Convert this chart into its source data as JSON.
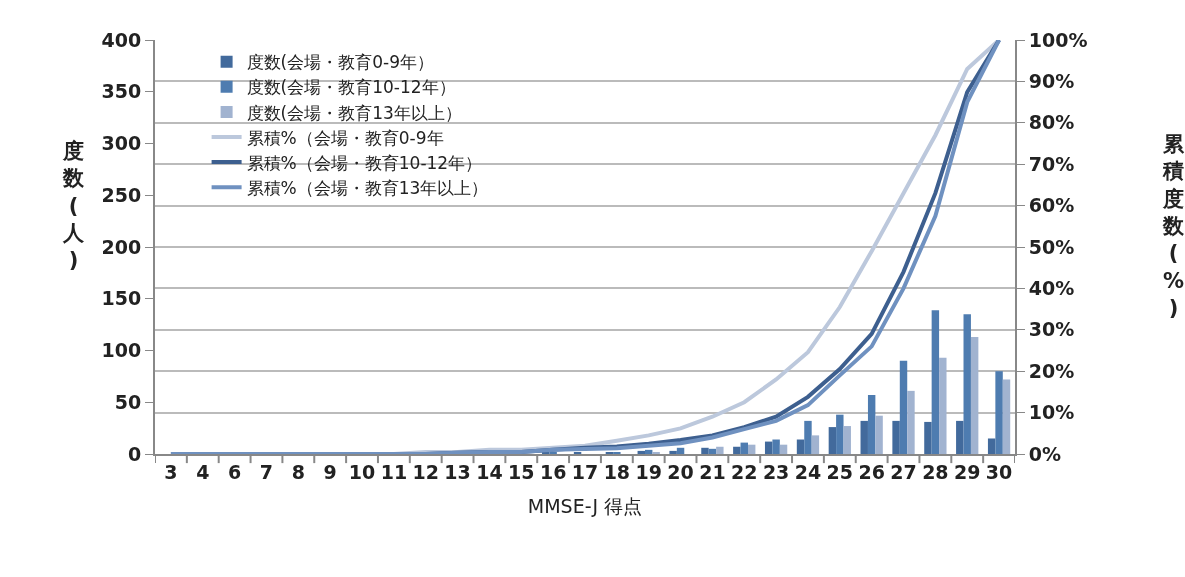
{
  "chart_data": {
    "type": "bar",
    "xlabel": "MMSE-J 得点",
    "ylabel": "度数(人)",
    "y2label": "累積度数(%)",
    "categories": [
      "3",
      "4",
      "6",
      "7",
      "8",
      "9",
      "10",
      "11",
      "12",
      "13",
      "14",
      "15",
      "16",
      "17",
      "18",
      "19",
      "20",
      "21",
      "22",
      "23",
      "24",
      "25",
      "26",
      "27",
      "28",
      "29",
      "30"
    ],
    "series": [
      {
        "name": "度数(会場・教育0-9年）",
        "color": "#426a9c",
        "values": [
          0,
          0,
          0,
          0,
          0,
          0,
          0,
          0,
          0,
          0,
          0,
          0,
          1,
          1,
          1,
          3,
          3,
          6,
          7,
          12,
          14,
          26,
          32,
          32,
          31,
          32,
          15
        ]
      },
      {
        "name": "度数(会場・教育10-12年）",
        "color": "#4e7cb0",
        "values": [
          0,
          0,
          0,
          0,
          0,
          0,
          0,
          0,
          0,
          0,
          0,
          0,
          1,
          0,
          1,
          4,
          6,
          5,
          11,
          14,
          32,
          38,
          57,
          90,
          139,
          135,
          80
        ]
      },
      {
        "name": "度数(会場・教育13年以上）",
        "color": "#a1b3d0",
        "values": [
          0,
          0,
          0,
          0,
          0,
          0,
          0,
          0,
          0,
          0,
          0,
          0,
          0,
          0,
          0,
          1,
          0,
          7,
          9,
          9,
          18,
          27,
          37,
          61,
          93,
          113,
          72
        ]
      },
      {
        "name": "累積%（会場・教育0-9年",
        "type": "line",
        "axis": "y2",
        "color": "#bcc8dc",
        "values": [
          0,
          0,
          0,
          0,
          0,
          0,
          0,
          0,
          0.5,
          0.5,
          1,
          1,
          1.5,
          2,
          3.2,
          4.5,
          6.2,
          9,
          12.5,
          18,
          24.6,
          35.5,
          49,
          63,
          77,
          93,
          100
        ]
      },
      {
        "name": "累積%（会場・教育10-12年）",
        "type": "line",
        "axis": "y2",
        "color": "#3d5f8f",
        "values": [
          0,
          0,
          0,
          0,
          0,
          0,
          0,
          0,
          0,
          0.3,
          0.5,
          0.5,
          1,
          1.5,
          1.8,
          2.5,
          3.4,
          4.5,
          6.5,
          9,
          13.8,
          20.5,
          29,
          44,
          63,
          87.4,
          100
        ]
      },
      {
        "name": "累積%（会場・教育13年以上）",
        "type": "line",
        "axis": "y2",
        "color": "#6f91c0",
        "values": [
          0,
          0,
          0,
          0,
          0,
          0,
          0,
          0,
          0,
          0.3,
          0.5,
          0.5,
          1,
          1.2,
          1.4,
          2,
          2.6,
          4,
          6,
          8,
          11.8,
          19,
          26,
          40,
          57.5,
          85,
          100
        ]
      }
    ],
    "ylim": [
      0,
      400
    ],
    "yticks": [
      0,
      50,
      100,
      150,
      200,
      250,
      300,
      350,
      400
    ],
    "y2lim": [
      0,
      100
    ],
    "y2ticks": [
      {
        "value": 0,
        "label": "0%"
      },
      {
        "value": 10,
        "label": "10%"
      },
      {
        "value": 20,
        "label": "20%"
      },
      {
        "value": 30,
        "label": "30%"
      },
      {
        "value": 40,
        "label": "40%"
      },
      {
        "value": 50,
        "label": "50%"
      },
      {
        "value": 60,
        "label": "60%"
      },
      {
        "value": 70,
        "label": "70%"
      },
      {
        "value": 80,
        "label": "80%"
      },
      {
        "value": 90,
        "label": "90%"
      },
      {
        "value": 100,
        "label": "100%"
      }
    ],
    "grid": "y",
    "legend": "top left",
    "line_style": "solid",
    "marker": "none"
  }
}
